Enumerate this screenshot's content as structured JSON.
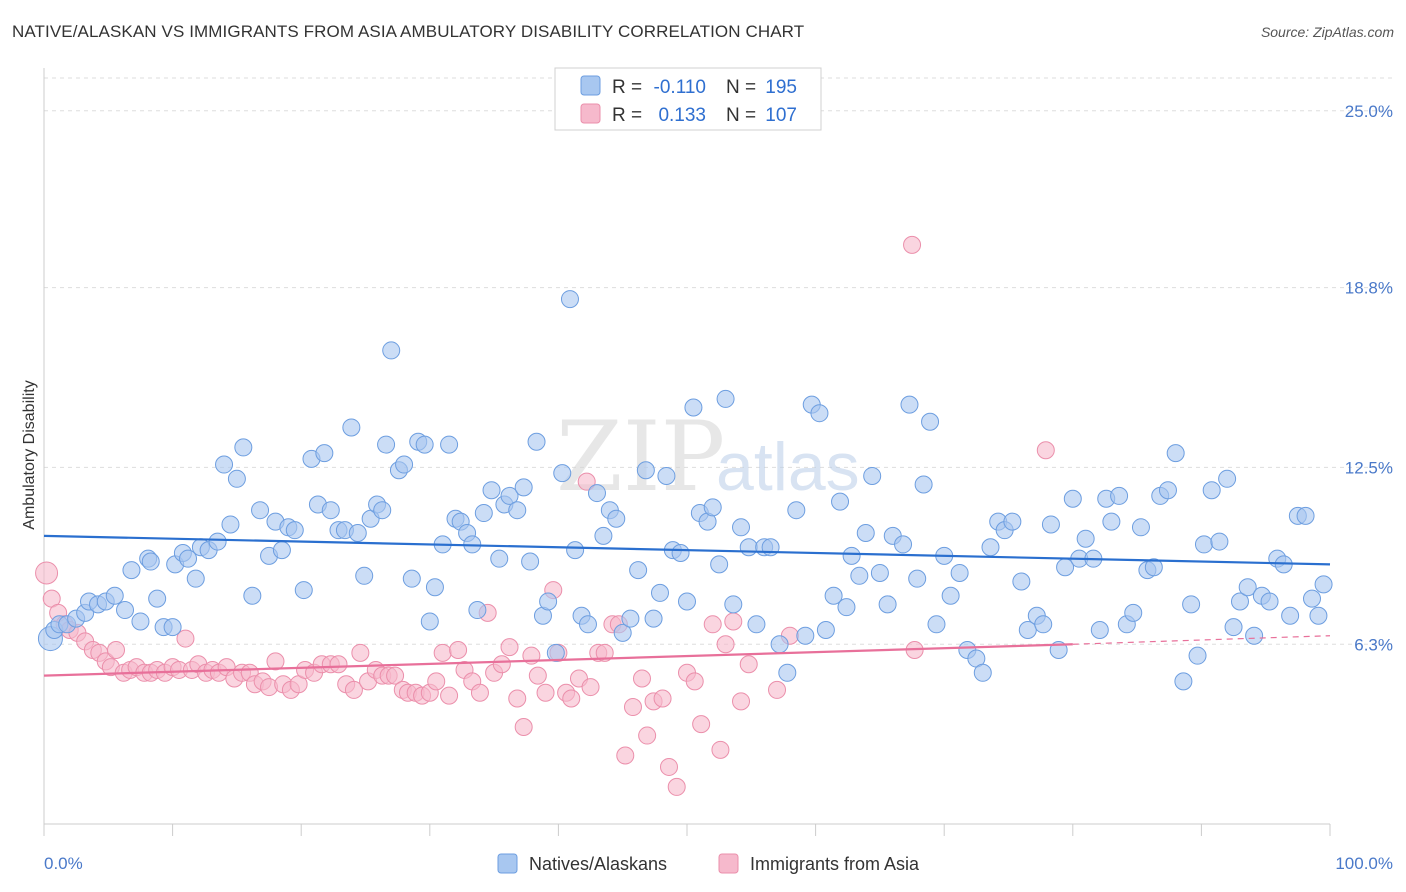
{
  "title": "NATIVE/ALASKAN VS IMMIGRANTS FROM ASIA AMBULATORY DISABILITY CORRELATION CHART",
  "source": "Source: ZipAtlas.com",
  "watermark": {
    "zip": "ZIP",
    "atlas": "atlas"
  },
  "colors": {
    "blue_fill": "#a8c7f0",
    "blue_stroke": "#6d9ee0",
    "blue_line": "#2a6fcf",
    "pink_fill": "#f6b9cc",
    "pink_stroke": "#eb8fab",
    "pink_line": "#e8709a",
    "axis_text": "#4a79c9",
    "grid": "#dddddd"
  },
  "legend": {
    "rows": [
      {
        "r_label": "R =",
        "r_value": "-0.110",
        "n_label": "N =",
        "n_value": "195"
      },
      {
        "r_label": "R =",
        "r_value": "0.133",
        "n_label": "N =",
        "n_value": "107"
      }
    ]
  },
  "chart_data": {
    "type": "scatter",
    "title": "NATIVE/ALASKAN VS IMMIGRANTS FROM ASIA AMBULATORY DISABILITY CORRELATION CHART",
    "xlabel": "",
    "ylabel": "Ambulatory Disability",
    "x_unit": "%",
    "xlim": [
      0,
      100
    ],
    "ylim": [
      0,
      26.5
    ],
    "x_tick_labels": [
      "0.0%",
      "100.0%"
    ],
    "y_ticks": [
      6.3,
      12.5,
      18.8,
      25.0
    ],
    "y_tick_labels": [
      "6.3%",
      "12.5%",
      "18.8%",
      "25.0%"
    ],
    "grid": true,
    "legend_position": "top-center",
    "series": [
      {
        "name": "Natives/Alaskans",
        "color": "#a8c7f0",
        "r": -0.11,
        "n": 195,
        "trend": {
          "x": [
            0,
            100
          ],
          "y": [
            10.1,
            9.1
          ]
        },
        "points": [
          [
            0.5,
            6.5
          ],
          [
            0.8,
            6.8
          ],
          [
            1.2,
            7.0
          ],
          [
            1.8,
            7.0
          ],
          [
            2.5,
            7.2
          ],
          [
            3.2,
            7.4
          ],
          [
            3.5,
            7.8
          ],
          [
            4.2,
            7.7
          ],
          [
            4.8,
            7.8
          ],
          [
            5.5,
            8.0
          ],
          [
            6.3,
            7.5
          ],
          [
            6.8,
            8.9
          ],
          [
            7.5,
            7.1
          ],
          [
            8.1,
            9.3
          ],
          [
            8.3,
            9.2
          ],
          [
            8.8,
            7.9
          ],
          [
            9.3,
            6.9
          ],
          [
            10.0,
            6.9
          ],
          [
            10.2,
            9.1
          ],
          [
            10.8,
            9.5
          ],
          [
            11.2,
            9.3
          ],
          [
            11.8,
            8.6
          ],
          [
            12.2,
            9.7
          ],
          [
            12.8,
            9.6
          ],
          [
            13.5,
            9.9
          ],
          [
            14.0,
            12.6
          ],
          [
            14.5,
            10.5
          ],
          [
            15.0,
            12.1
          ],
          [
            15.5,
            13.2
          ],
          [
            16.2,
            8.0
          ],
          [
            16.8,
            11.0
          ],
          [
            17.5,
            9.4
          ],
          [
            18.0,
            10.6
          ],
          [
            18.5,
            9.6
          ],
          [
            19.0,
            10.4
          ],
          [
            19.5,
            10.3
          ],
          [
            20.2,
            8.2
          ],
          [
            20.8,
            12.8
          ],
          [
            21.3,
            11.2
          ],
          [
            21.8,
            13.0
          ],
          [
            22.3,
            11.0
          ],
          [
            22.9,
            10.3
          ],
          [
            23.4,
            10.3
          ],
          [
            23.9,
            13.9
          ],
          [
            24.4,
            10.2
          ],
          [
            24.9,
            8.7
          ],
          [
            25.4,
            10.7
          ],
          [
            25.9,
            11.2
          ],
          [
            26.3,
            11.0
          ],
          [
            26.6,
            13.3
          ],
          [
            27.0,
            16.6
          ],
          [
            27.6,
            12.4
          ],
          [
            28.0,
            12.6
          ],
          [
            28.6,
            8.6
          ],
          [
            29.1,
            13.4
          ],
          [
            29.6,
            13.3
          ],
          [
            30.0,
            7.1
          ],
          [
            30.4,
            8.3
          ],
          [
            31.0,
            9.8
          ],
          [
            31.5,
            13.3
          ],
          [
            32.0,
            10.7
          ],
          [
            32.4,
            10.6
          ],
          [
            32.9,
            10.2
          ],
          [
            33.3,
            9.8
          ],
          [
            33.7,
            7.5
          ],
          [
            34.2,
            10.9
          ],
          [
            34.8,
            11.7
          ],
          [
            35.4,
            9.3
          ],
          [
            35.8,
            11.2
          ],
          [
            36.2,
            11.5
          ],
          [
            36.8,
            11.0
          ],
          [
            37.3,
            11.8
          ],
          [
            37.8,
            9.2
          ],
          [
            38.3,
            13.4
          ],
          [
            38.8,
            7.3
          ],
          [
            39.2,
            7.8
          ],
          [
            39.8,
            6.0
          ],
          [
            40.3,
            12.3
          ],
          [
            40.9,
            18.4
          ],
          [
            41.3,
            9.6
          ],
          [
            41.8,
            7.3
          ],
          [
            42.3,
            7.0
          ],
          [
            43.0,
            11.6
          ],
          [
            43.5,
            10.1
          ],
          [
            44.0,
            11.0
          ],
          [
            44.5,
            10.7
          ],
          [
            45.0,
            6.7
          ],
          [
            45.6,
            7.2
          ],
          [
            46.2,
            8.9
          ],
          [
            46.8,
            12.4
          ],
          [
            47.4,
            7.2
          ],
          [
            47.9,
            8.1
          ],
          [
            48.4,
            12.2
          ],
          [
            48.9,
            9.6
          ],
          [
            49.5,
            9.5
          ],
          [
            50.0,
            7.8
          ],
          [
            50.5,
            14.6
          ],
          [
            51.0,
            10.9
          ],
          [
            51.6,
            10.6
          ],
          [
            52.0,
            11.1
          ],
          [
            52.5,
            9.1
          ],
          [
            53.0,
            14.9
          ],
          [
            53.6,
            7.7
          ],
          [
            54.2,
            10.4
          ],
          [
            54.8,
            9.7
          ],
          [
            55.4,
            7.0
          ],
          [
            56.0,
            9.7
          ],
          [
            56.5,
            9.7
          ],
          [
            57.2,
            6.3
          ],
          [
            57.8,
            5.3
          ],
          [
            58.5,
            11.0
          ],
          [
            59.2,
            6.6
          ],
          [
            59.7,
            14.7
          ],
          [
            60.3,
            14.4
          ],
          [
            60.8,
            6.8
          ],
          [
            61.4,
            8.0
          ],
          [
            61.9,
            11.3
          ],
          [
            62.4,
            7.6
          ],
          [
            62.8,
            9.4
          ],
          [
            63.4,
            8.7
          ],
          [
            63.9,
            10.2
          ],
          [
            64.4,
            12.2
          ],
          [
            65.0,
            8.8
          ],
          [
            65.6,
            7.7
          ],
          [
            66.0,
            10.1
          ],
          [
            66.8,
            9.8
          ],
          [
            67.3,
            14.7
          ],
          [
            67.9,
            8.6
          ],
          [
            68.4,
            11.9
          ],
          [
            68.9,
            14.1
          ],
          [
            69.4,
            7.0
          ],
          [
            70.0,
            9.4
          ],
          [
            70.5,
            8.0
          ],
          [
            71.2,
            8.8
          ],
          [
            71.8,
            6.1
          ],
          [
            72.5,
            5.8
          ],
          [
            73.0,
            5.3
          ],
          [
            73.6,
            9.7
          ],
          [
            74.2,
            10.6
          ],
          [
            74.7,
            10.3
          ],
          [
            75.3,
            10.6
          ],
          [
            76.0,
            8.5
          ],
          [
            76.5,
            6.8
          ],
          [
            77.2,
            7.3
          ],
          [
            77.7,
            7.0
          ],
          [
            78.3,
            10.5
          ],
          [
            78.9,
            6.1
          ],
          [
            79.4,
            9.0
          ],
          [
            80.0,
            11.4
          ],
          [
            80.5,
            9.3
          ],
          [
            81.0,
            10.0
          ],
          [
            81.6,
            9.3
          ],
          [
            82.1,
            6.8
          ],
          [
            82.6,
            11.4
          ],
          [
            83.0,
            10.6
          ],
          [
            83.6,
            11.5
          ],
          [
            84.2,
            7.0
          ],
          [
            84.7,
            7.4
          ],
          [
            85.3,
            10.4
          ],
          [
            85.8,
            8.9
          ],
          [
            86.3,
            9.0
          ],
          [
            86.8,
            11.5
          ],
          [
            87.4,
            11.7
          ],
          [
            88.0,
            13.0
          ],
          [
            88.6,
            5.0
          ],
          [
            89.2,
            7.7
          ],
          [
            89.7,
            5.9
          ],
          [
            90.2,
            9.8
          ],
          [
            90.8,
            11.7
          ],
          [
            91.4,
            9.9
          ],
          [
            92.0,
            12.1
          ],
          [
            92.5,
            6.9
          ],
          [
            93.0,
            7.8
          ],
          [
            93.6,
            8.3
          ],
          [
            94.1,
            6.6
          ],
          [
            94.7,
            8.0
          ],
          [
            95.3,
            7.8
          ],
          [
            95.9,
            9.3
          ],
          [
            96.4,
            9.1
          ],
          [
            96.9,
            7.3
          ],
          [
            97.5,
            10.8
          ],
          [
            98.1,
            10.8
          ],
          [
            98.6,
            7.9
          ],
          [
            99.1,
            7.3
          ],
          [
            99.5,
            8.4
          ]
        ]
      },
      {
        "name": "Immigrants from Asia",
        "color": "#f6b9cc",
        "r": 0.133,
        "n": 107,
        "trend": {
          "x": [
            0,
            80
          ],
          "y": [
            5.2,
            6.3
          ]
        },
        "trend_dashed": {
          "x": [
            80,
            100
          ],
          "y": [
            6.3,
            6.6
          ]
        },
        "points": [
          [
            0.2,
            8.8
          ],
          [
            0.6,
            7.9
          ],
          [
            1.1,
            7.4
          ],
          [
            1.6,
            7.0
          ],
          [
            2.0,
            6.8
          ],
          [
            2.6,
            6.7
          ],
          [
            3.2,
            6.4
          ],
          [
            3.8,
            6.1
          ],
          [
            4.3,
            6.0
          ],
          [
            4.8,
            5.7
          ],
          [
            5.2,
            5.5
          ],
          [
            5.6,
            6.1
          ],
          [
            6.2,
            5.3
          ],
          [
            6.7,
            5.4
          ],
          [
            7.2,
            5.5
          ],
          [
            7.8,
            5.3
          ],
          [
            8.3,
            5.3
          ],
          [
            8.8,
            5.4
          ],
          [
            9.4,
            5.3
          ],
          [
            10.0,
            5.5
          ],
          [
            10.5,
            5.4
          ],
          [
            11.0,
            6.5
          ],
          [
            11.5,
            5.4
          ],
          [
            12.0,
            5.6
          ],
          [
            12.6,
            5.3
          ],
          [
            13.1,
            5.4
          ],
          [
            13.6,
            5.3
          ],
          [
            14.2,
            5.5
          ],
          [
            14.8,
            5.1
          ],
          [
            15.4,
            5.3
          ],
          [
            16.0,
            5.3
          ],
          [
            16.4,
            4.9
          ],
          [
            17.0,
            5.0
          ],
          [
            17.5,
            4.8
          ],
          [
            18.0,
            5.7
          ],
          [
            18.6,
            4.9
          ],
          [
            19.2,
            4.7
          ],
          [
            19.8,
            4.9
          ],
          [
            20.3,
            5.4
          ],
          [
            21.0,
            5.3
          ],
          [
            21.6,
            5.6
          ],
          [
            22.3,
            5.6
          ],
          [
            22.9,
            5.6
          ],
          [
            23.5,
            4.9
          ],
          [
            24.1,
            4.7
          ],
          [
            24.6,
            6.0
          ],
          [
            25.2,
            5.0
          ],
          [
            25.8,
            5.4
          ],
          [
            26.3,
            5.2
          ],
          [
            26.8,
            5.2
          ],
          [
            27.3,
            5.2
          ],
          [
            27.9,
            4.7
          ],
          [
            28.3,
            4.6
          ],
          [
            28.9,
            4.6
          ],
          [
            29.4,
            4.5
          ],
          [
            30.0,
            4.6
          ],
          [
            30.5,
            5.0
          ],
          [
            31.0,
            6.0
          ],
          [
            31.5,
            4.5
          ],
          [
            32.2,
            6.1
          ],
          [
            32.7,
            5.4
          ],
          [
            33.3,
            5.0
          ],
          [
            33.9,
            4.6
          ],
          [
            34.5,
            7.4
          ],
          [
            35.0,
            5.3
          ],
          [
            35.6,
            5.6
          ],
          [
            36.2,
            6.2
          ],
          [
            36.8,
            4.4
          ],
          [
            37.3,
            3.4
          ],
          [
            37.9,
            5.9
          ],
          [
            38.4,
            5.2
          ],
          [
            39.0,
            4.6
          ],
          [
            39.6,
            8.2
          ],
          [
            40.0,
            6.0
          ],
          [
            40.6,
            4.6
          ],
          [
            41.0,
            4.4
          ],
          [
            41.6,
            5.1
          ],
          [
            42.2,
            12.0
          ],
          [
            42.5,
            4.8
          ],
          [
            43.1,
            6.0
          ],
          [
            43.6,
            6.0
          ],
          [
            44.2,
            7.0
          ],
          [
            44.7,
            7.0
          ],
          [
            45.2,
            2.4
          ],
          [
            45.8,
            4.1
          ],
          [
            46.5,
            5.1
          ],
          [
            46.9,
            3.1
          ],
          [
            47.4,
            4.3
          ],
          [
            48.1,
            4.4
          ],
          [
            48.6,
            2.0
          ],
          [
            49.2,
            1.3
          ],
          [
            50.0,
            5.3
          ],
          [
            50.6,
            5.0
          ],
          [
            51.1,
            3.5
          ],
          [
            52.0,
            7.0
          ],
          [
            52.6,
            2.6
          ],
          [
            53.0,
            6.3
          ],
          [
            53.6,
            7.1
          ],
          [
            54.2,
            4.3
          ],
          [
            54.8,
            5.6
          ],
          [
            57.0,
            4.7
          ],
          [
            58.0,
            6.6
          ],
          [
            67.5,
            20.3
          ],
          [
            67.7,
            6.1
          ],
          [
            77.9,
            13.1
          ]
        ]
      }
    ]
  },
  "bottom_legend": [
    {
      "label": "Natives/Alaskans"
    },
    {
      "label": "Immigrants from Asia"
    }
  ]
}
